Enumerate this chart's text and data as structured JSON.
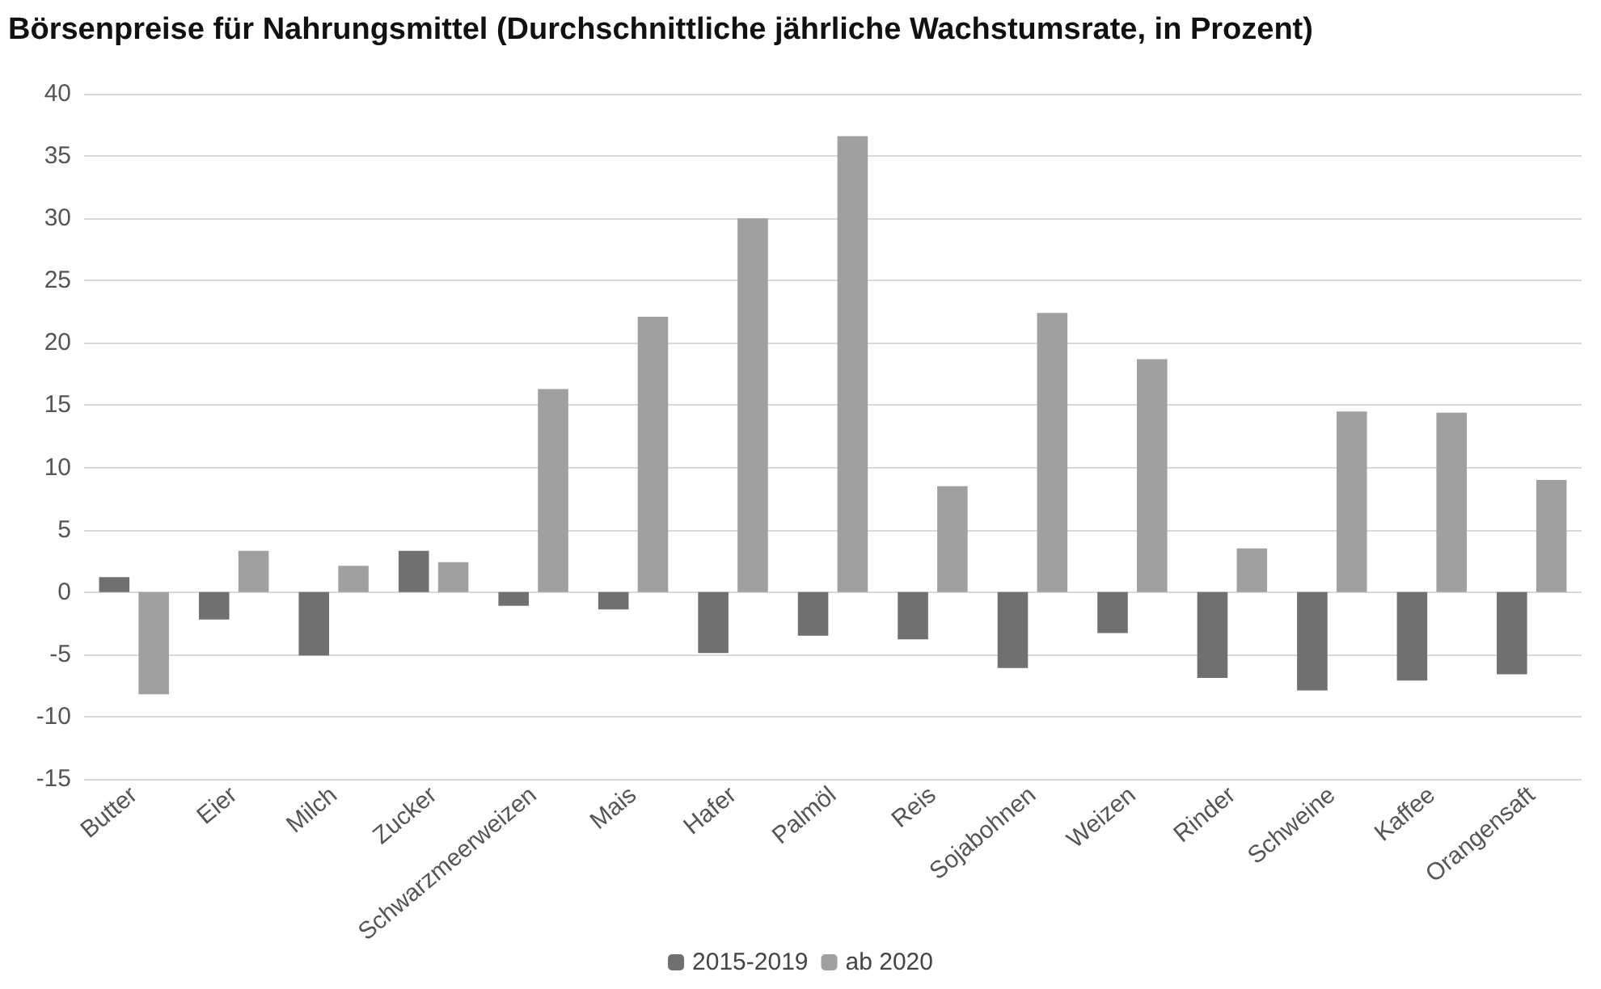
{
  "chart_data": {
    "type": "bar",
    "title": "Börsenpreise für Nahrungsmittel (Durchschnittliche jährliche Wachstumsrate, in Prozent)",
    "categories": [
      "Butter",
      "Eier",
      "Milch",
      "Zucker",
      "Schwarzmeerweizen",
      "Mais",
      "Hafer",
      "Palmöl",
      "Reis",
      "Sojabohnen",
      "Weizen",
      "Rinder",
      "Schweine",
      "Kaffee",
      "Orangensaft"
    ],
    "series": [
      {
        "name": "2015-2019",
        "color": "#707070",
        "values": [
          1.2,
          -2.2,
          -5.1,
          3.3,
          -1.1,
          -1.4,
          -4.9,
          -3.5,
          -3.8,
          -6.1,
          -3.3,
          -6.9,
          -7.9,
          -7.1,
          -6.6
        ]
      },
      {
        "name": "ab 2020",
        "color": "#a0a0a0",
        "values": [
          -8.2,
          3.3,
          2.1,
          2.4,
          16.3,
          22.1,
          30,
          36.6,
          8.5,
          22.4,
          18.7,
          3.5,
          14.5,
          14.4,
          9.0
        ]
      }
    ],
    "ylim": [
      -15,
      40
    ],
    "yticks": [
      -15,
      -10,
      -5,
      0,
      5,
      10,
      15,
      20,
      25,
      30,
      35,
      40
    ],
    "grid": "y",
    "legend": "bottom"
  }
}
